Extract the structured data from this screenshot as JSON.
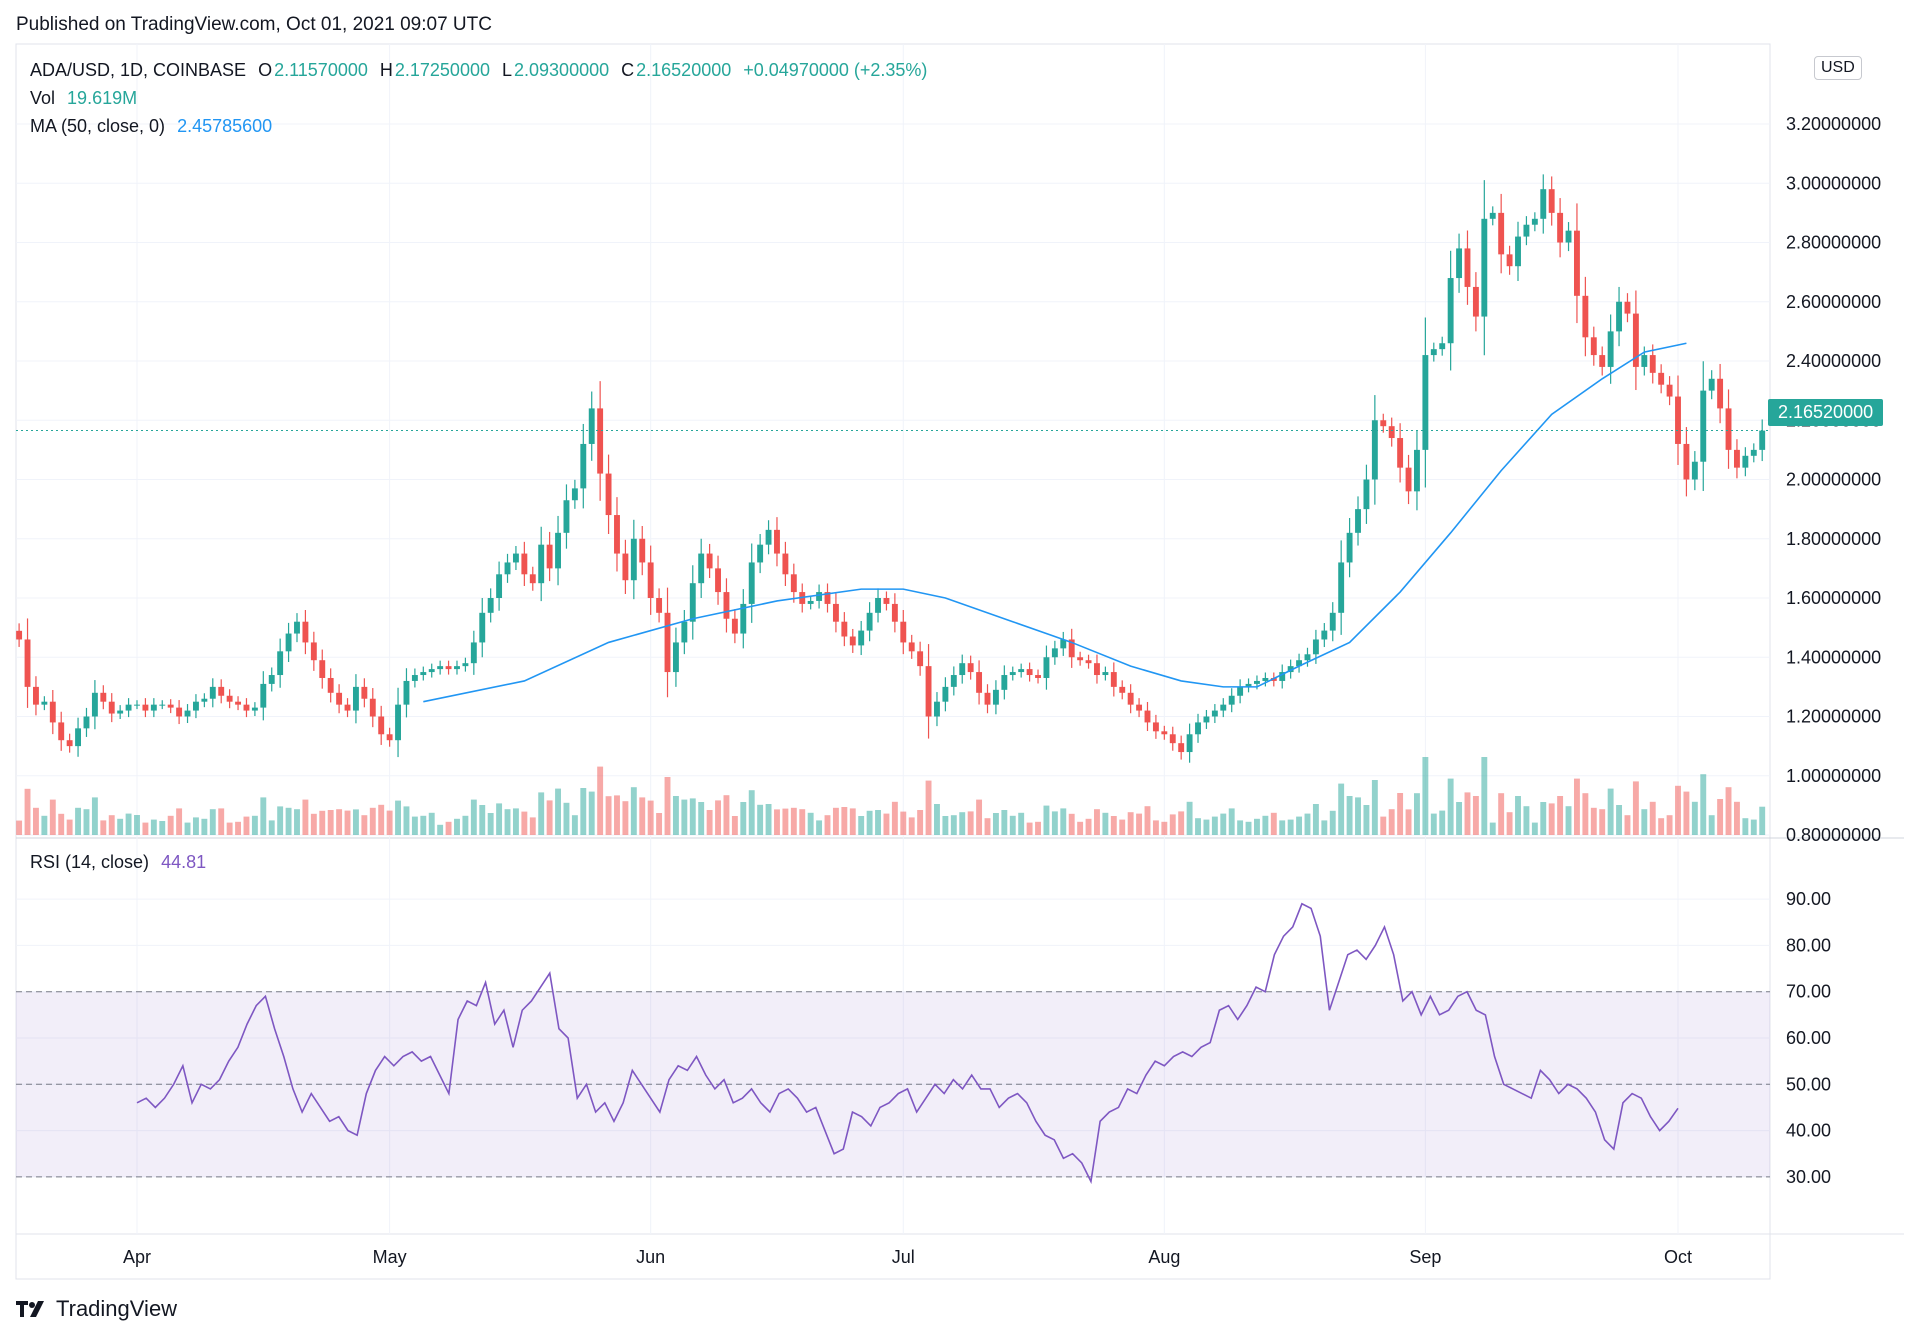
{
  "header": {
    "published": "Published on TradingView.com, Oct 01, 2021 09:07 UTC"
  },
  "legend": {
    "symbol": "ADA/USD, 1D, COINBASE",
    "o_label": "O",
    "o_value": "2.11570000",
    "h_label": "H",
    "h_value": "2.17250000",
    "l_label": "L",
    "l_value": "2.09300000",
    "c_label": "C",
    "c_value": "2.16520000",
    "change": "+0.04970000 (+2.35%)",
    "vol_label": "Vol",
    "vol_value": "19.619M",
    "ma_label": "MA (50, close, 0)",
    "ma_value": "2.45785600",
    "rsi_label": "RSI (14, close)",
    "rsi_value": "44.81"
  },
  "currency": "USD",
  "last_price_tag": "2.16520000",
  "footer": {
    "brand": "TradingView"
  },
  "colors": {
    "up": "#26a69a",
    "down": "#ef5350",
    "ma": "#2196f3",
    "rsi": "#7e57c2"
  },
  "chart_data": [
    {
      "type": "candlestick",
      "title": "ADA/USD, 1D, COINBASE",
      "price_ticks": [
        "3.20000000",
        "3.00000000",
        "2.80000000",
        "2.60000000",
        "2.40000000",
        "2.20000000",
        "2.00000000",
        "1.80000000",
        "1.60000000",
        "1.40000000",
        "1.20000000",
        "1.00000000",
        "0.80000000"
      ],
      "ylim": [
        0.8,
        3.2
      ],
      "x_ticks": [
        "Apr",
        "May",
        "Jun",
        "Jul",
        "Aug",
        "Sep",
        "Oct"
      ],
      "x_tick_days": [
        14,
        44,
        75,
        105,
        136,
        167,
        197
      ],
      "last_price": 2.1652,
      "ma50": [
        [
          48,
          1.25
        ],
        [
          60,
          1.32
        ],
        [
          70,
          1.45
        ],
        [
          80,
          1.53
        ],
        [
          90,
          1.59
        ],
        [
          100,
          1.63
        ],
        [
          105,
          1.63
        ],
        [
          110,
          1.6
        ],
        [
          118,
          1.52
        ],
        [
          125,
          1.45
        ],
        [
          132,
          1.37
        ],
        [
          138,
          1.32
        ],
        [
          143,
          1.3
        ],
        [
          147,
          1.3
        ],
        [
          152,
          1.37
        ],
        [
          158,
          1.45
        ],
        [
          164,
          1.62
        ],
        [
          170,
          1.82
        ],
        [
          176,
          2.03
        ],
        [
          182,
          2.22
        ],
        [
          188,
          2.34
        ],
        [
          193,
          2.43
        ],
        [
          198,
          2.46
        ]
      ],
      "close": [
        1.46,
        1.3,
        1.24,
        1.25,
        1.18,
        1.12,
        1.1,
        1.16,
        1.2,
        1.28,
        1.25,
        1.21,
        1.22,
        1.24,
        1.24,
        1.22,
        1.24,
        1.24,
        1.23,
        1.2,
        1.22,
        1.25,
        1.26,
        1.3,
        1.27,
        1.25,
        1.24,
        1.22,
        1.23,
        1.31,
        1.34,
        1.42,
        1.48,
        1.52,
        1.45,
        1.39,
        1.33,
        1.28,
        1.24,
        1.22,
        1.3,
        1.26,
        1.2,
        1.14,
        1.12,
        1.24,
        1.32,
        1.34,
        1.35,
        1.36,
        1.37,
        1.36,
        1.37,
        1.38,
        1.45,
        1.55,
        1.6,
        1.68,
        1.72,
        1.75,
        1.68,
        1.65,
        1.78,
        1.7,
        1.82,
        1.93,
        1.97,
        2.12,
        2.24,
        2.02,
        1.88,
        1.75,
        1.66,
        1.8,
        1.72,
        1.6,
        1.55,
        1.35,
        1.45,
        1.52,
        1.65,
        1.75,
        1.7,
        1.62,
        1.53,
        1.48,
        1.58,
        1.72,
        1.78,
        1.83,
        1.75,
        1.68,
        1.62,
        1.58,
        1.59,
        1.62,
        1.58,
        1.52,
        1.47,
        1.44,
        1.49,
        1.55,
        1.6,
        1.58,
        1.52,
        1.45,
        1.42,
        1.37,
        1.2,
        1.25,
        1.3,
        1.34,
        1.38,
        1.35,
        1.28,
        1.24,
        1.29,
        1.34,
        1.35,
        1.36,
        1.34,
        1.33,
        1.4,
        1.43,
        1.46,
        1.4,
        1.39,
        1.38,
        1.34,
        1.35,
        1.3,
        1.28,
        1.24,
        1.22,
        1.18,
        1.15,
        1.14,
        1.11,
        1.08,
        1.14,
        1.18,
        1.2,
        1.22,
        1.24,
        1.27,
        1.3,
        1.31,
        1.32,
        1.33,
        1.32,
        1.35,
        1.37,
        1.39,
        1.41,
        1.46,
        1.49,
        1.55,
        1.72,
        1.82,
        1.9,
        2.0,
        2.2,
        2.18,
        2.14,
        2.04,
        1.96,
        2.1,
        2.42,
        2.44,
        2.46,
        2.68,
        2.78,
        2.65,
        2.55,
        2.88,
        2.9,
        2.76,
        2.72,
        2.82,
        2.86,
        2.88,
        2.98,
        2.9,
        2.8,
        2.84,
        2.62,
        2.48,
        2.42,
        2.38,
        2.5,
        2.6,
        2.56,
        2.38,
        2.42,
        2.36,
        2.32,
        2.28,
        2.12,
        2.0,
        2.06,
        2.3,
        2.34,
        2.24,
        2.1,
        2.04,
        2.08,
        2.1,
        2.165
      ]
    },
    {
      "type": "line",
      "title": "RSI (14, close)",
      "ylim": [
        25,
        95
      ],
      "y_ticks": [
        "90.00",
        "80.00",
        "70.00",
        "60.00",
        "50.00",
        "40.00",
        "30.00"
      ],
      "bands": [
        70,
        50,
        30
      ],
      "points": [
        [
          14,
          46
        ],
        [
          16,
          47
        ],
        [
          18,
          45
        ],
        [
          20,
          47
        ],
        [
          22,
          50
        ],
        [
          24,
          54
        ],
        [
          26,
          46
        ],
        [
          28,
          50
        ],
        [
          30,
          49
        ],
        [
          32,
          51
        ],
        [
          34,
          55
        ],
        [
          36,
          58
        ],
        [
          38,
          63
        ],
        [
          40,
          67
        ],
        [
          42,
          69
        ],
        [
          44,
          62
        ],
        [
          46,
          56
        ],
        [
          48,
          49
        ],
        [
          50,
          44
        ],
        [
          52,
          48
        ],
        [
          54,
          45
        ],
        [
          56,
          42
        ],
        [
          58,
          43
        ],
        [
          60,
          40
        ],
        [
          62,
          39
        ],
        [
          64,
          48
        ],
        [
          66,
          53
        ],
        [
          68,
          56
        ],
        [
          70,
          54
        ],
        [
          72,
          56
        ],
        [
          74,
          57
        ],
        [
          76,
          55
        ],
        [
          78,
          56
        ],
        [
          80,
          52
        ],
        [
          82,
          48
        ],
        [
          84,
          64
        ],
        [
          86,
          68
        ],
        [
          88,
          67
        ],
        [
          90,
          72
        ],
        [
          92,
          63
        ],
        [
          94,
          66
        ],
        [
          96,
          58
        ],
        [
          98,
          66
        ],
        [
          100,
          68
        ],
        [
          102,
          71
        ],
        [
          104,
          74
        ],
        [
          106,
          62
        ],
        [
          108,
          60
        ],
        [
          110,
          47
        ],
        [
          112,
          50
        ],
        [
          114,
          44
        ],
        [
          116,
          46
        ],
        [
          118,
          42
        ],
        [
          120,
          46
        ],
        [
          122,
          53
        ],
        [
          124,
          50
        ],
        [
          126,
          47
        ],
        [
          128,
          44
        ],
        [
          130,
          51
        ],
        [
          132,
          54
        ],
        [
          134,
          53
        ],
        [
          136,
          56
        ],
        [
          138,
          52
        ],
        [
          140,
          49
        ],
        [
          142,
          51
        ],
        [
          144,
          46
        ],
        [
          146,
          47
        ],
        [
          148,
          49
        ],
        [
          150,
          46
        ],
        [
          152,
          44
        ],
        [
          154,
          48
        ],
        [
          156,
          49
        ],
        [
          158,
          47
        ],
        [
          160,
          44
        ],
        [
          162,
          45
        ],
        [
          164,
          40
        ],
        [
          166,
          35
        ],
        [
          168,
          36
        ],
        [
          170,
          44
        ],
        [
          172,
          43
        ],
        [
          174,
          41
        ],
        [
          176,
          45
        ],
        [
          178,
          46
        ],
        [
          180,
          48
        ],
        [
          182,
          49
        ],
        [
          184,
          44
        ],
        [
          186,
          47
        ],
        [
          188,
          50
        ],
        [
          190,
          48
        ],
        [
          192,
          51
        ],
        [
          194,
          49
        ],
        [
          196,
          52
        ],
        [
          198,
          49
        ],
        [
          200,
          49
        ],
        [
          202,
          45
        ],
        [
          204,
          47
        ],
        [
          206,
          48
        ],
        [
          208,
          46
        ],
        [
          210,
          42
        ],
        [
          212,
          39
        ],
        [
          214,
          38
        ],
        [
          216,
          34
        ],
        [
          218,
          35
        ],
        [
          220,
          33
        ],
        [
          222,
          29
        ],
        [
          224,
          42
        ],
        [
          226,
          44
        ],
        [
          228,
          45
        ],
        [
          230,
          49
        ],
        [
          232,
          48
        ],
        [
          234,
          52
        ],
        [
          236,
          55
        ],
        [
          238,
          54
        ],
        [
          240,
          56
        ],
        [
          242,
          57
        ],
        [
          244,
          56
        ],
        [
          246,
          58
        ],
        [
          248,
          59
        ],
        [
          250,
          66
        ],
        [
          252,
          67
        ],
        [
          254,
          64
        ],
        [
          256,
          67
        ],
        [
          258,
          71
        ],
        [
          260,
          70
        ],
        [
          262,
          78
        ],
        [
          264,
          82
        ],
        [
          266,
          84
        ],
        [
          268,
          89
        ],
        [
          270,
          88
        ],
        [
          272,
          82
        ],
        [
          274,
          66
        ],
        [
          276,
          72
        ],
        [
          278,
          78
        ],
        [
          280,
          79
        ],
        [
          282,
          77
        ],
        [
          284,
          80
        ],
        [
          286,
          84
        ],
        [
          288,
          78
        ],
        [
          290,
          68
        ],
        [
          292,
          70
        ],
        [
          294,
          65
        ],
        [
          296,
          69
        ],
        [
          298,
          65
        ],
        [
          300,
          66
        ],
        [
          302,
          69
        ],
        [
          304,
          70
        ],
        [
          306,
          66
        ],
        [
          308,
          65
        ],
        [
          310,
          56
        ],
        [
          312,
          50
        ],
        [
          314,
          49
        ],
        [
          316,
          48
        ],
        [
          318,
          47
        ],
        [
          320,
          53
        ],
        [
          322,
          51
        ],
        [
          324,
          48
        ],
        [
          326,
          50
        ],
        [
          328,
          49
        ],
        [
          330,
          47
        ],
        [
          332,
          44
        ],
        [
          334,
          38
        ],
        [
          336,
          36
        ],
        [
          338,
          46
        ],
        [
          340,
          48
        ],
        [
          342,
          47
        ],
        [
          344,
          43
        ],
        [
          346,
          40
        ],
        [
          348,
          42
        ],
        [
          350,
          44.81
        ]
      ]
    }
  ]
}
